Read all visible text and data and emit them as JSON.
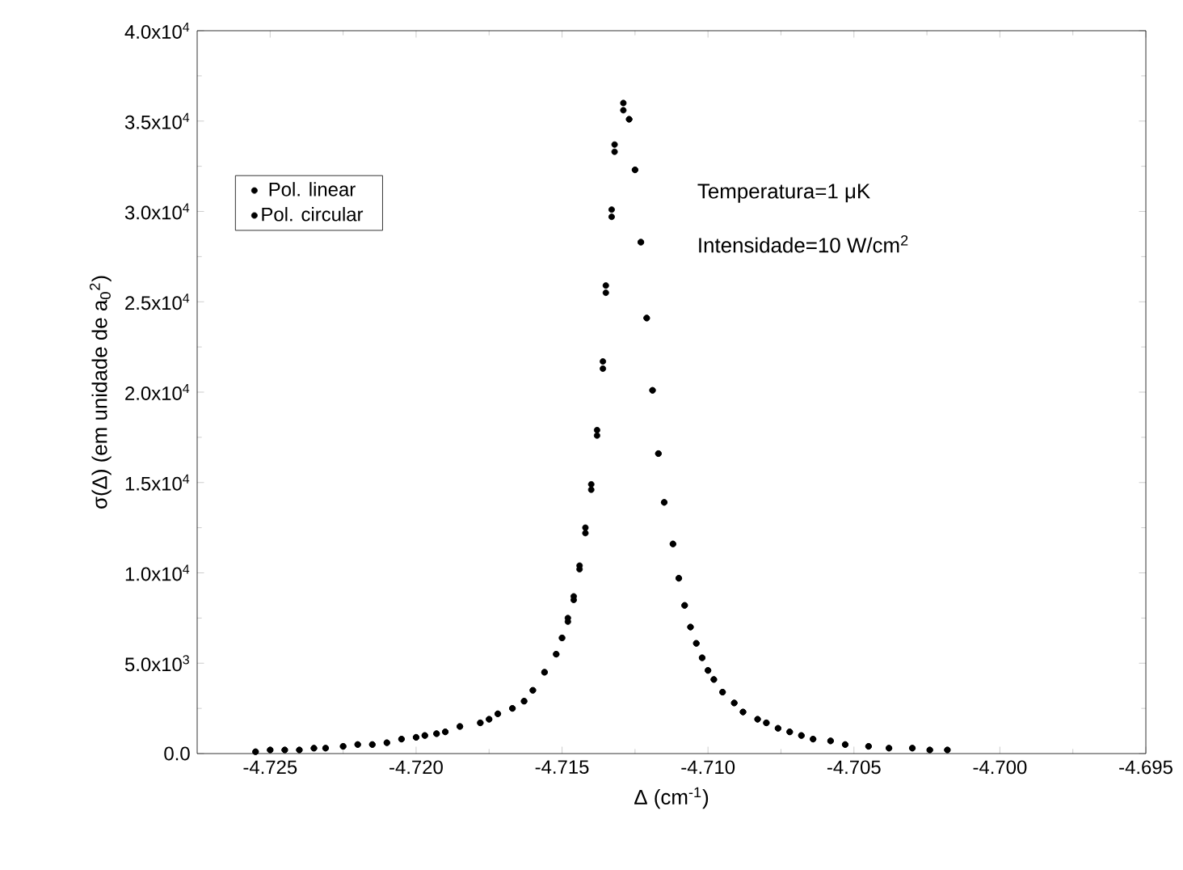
{
  "chart_data": {
    "type": "scatter",
    "xlabel": "Δ (cm$^{-1}$)",
    "ylabel": "σ(Δ) (em unidade de a$_{0}$$^{2}$)",
    "annotations": [
      "Temperatura=1 μK",
      "Intensidade=10 W/cm$^{2}$"
    ],
    "xlim": [
      -4.7275,
      -4.695
    ],
    "ylim": [
      0,
      40000
    ],
    "xticks": [
      -4.725,
      {
        "value": -4.72,
        "label": "-4.720"
      },
      -4.715,
      {
        "value": -4.71,
        "label": "-4.710"
      },
      -4.705,
      {
        "value": -4.7,
        "label": "-4.700"
      },
      -4.695
    ],
    "yticks": [
      {
        "value": 0,
        "label": "0.0"
      },
      {
        "value": 5000,
        "label": "5.0x10$^{3}$"
      },
      {
        "value": 10000,
        "label": "1.0x10$^{4}$"
      },
      {
        "value": 15000,
        "label": "1.5x10$^{4}$"
      },
      {
        "value": 20000,
        "label": "2.0x10$^{4}$"
      },
      {
        "value": 25000,
        "label": "2.5x10$^{4}$"
      },
      {
        "value": 30000,
        "label": "3.0x10$^{4}$"
      },
      {
        "value": 35000,
        "label": "3.5x10$^{4}$"
      },
      {
        "value": 40000,
        "label": "4.0x10$^{4}$"
      }
    ],
    "grid": false,
    "legend": "top left",
    "marker": "circle",
    "series": [
      {
        "name": "Pol. linear",
        "color": "#000000",
        "x": [
          -4.7255,
          -4.725,
          -4.7245,
          -4.724,
          -4.7235,
          -4.7231,
          -4.7225,
          -4.722,
          -4.7215,
          -4.721,
          -4.7205,
          -4.72,
          -4.7197,
          -4.7193,
          -4.719,
          -4.7185,
          -4.7178,
          -4.7175,
          -4.7172,
          -4.7167,
          -4.7163,
          -4.716,
          -4.7156,
          -4.7152,
          -4.715,
          -4.7148,
          -4.7146,
          -4.7144,
          -4.7142,
          -4.714,
          -4.7138,
          -4.7136,
          -4.7135,
          -4.7133,
          -4.7132,
          -4.7129,
          -4.7127,
          -4.7125,
          -4.7123,
          -4.7121,
          -4.7119,
          -4.7117,
          -4.7115,
          -4.7112,
          -4.711,
          -4.7108,
          -4.7106,
          -4.7104,
          -4.7102,
          -4.71,
          -4.7098,
          -4.7095,
          -4.7091,
          -4.7088,
          -4.7083,
          -4.708,
          -4.7076,
          -4.7072,
          -4.7068,
          -4.7064,
          -4.7058,
          -4.7053,
          -4.7045,
          -4.7038,
          -4.703,
          -4.7024,
          -4.7018
        ],
        "values": [
          100,
          200,
          200,
          200,
          300,
          300,
          400,
          500,
          500,
          600,
          800,
          900,
          1000,
          1100,
          1200,
          1500,
          1700,
          1900,
          2200,
          2500,
          2900,
          3500,
          4500,
          5500,
          6400,
          7500,
          8700,
          10400,
          12500,
          14900,
          17900,
          21700,
          25900,
          30100,
          33700,
          35600,
          35100,
          32300,
          28300,
          24100,
          20100,
          16600,
          13900,
          11600,
          9700,
          8200,
          7000,
          6100,
          5300,
          4600,
          4100,
          3400,
          2800,
          2300,
          1900,
          1700,
          1400,
          1200,
          1000,
          800,
          700,
          500,
          400,
          300,
          300,
          200,
          200
        ]
      },
      {
        "name": "Pol. circular",
        "color": "#000000",
        "x": [
          -4.7255,
          -4.725,
          -4.7245,
          -4.724,
          -4.7235,
          -4.7231,
          -4.7225,
          -4.722,
          -4.7215,
          -4.721,
          -4.7205,
          -4.72,
          -4.7197,
          -4.7193,
          -4.719,
          -4.7185,
          -4.7178,
          -4.7175,
          -4.7172,
          -4.7167,
          -4.7163,
          -4.716,
          -4.7156,
          -4.7152,
          -4.715,
          -4.7148,
          -4.7146,
          -4.7144,
          -4.7142,
          -4.714,
          -4.7138,
          -4.7136,
          -4.7135,
          -4.7133,
          -4.7132,
          -4.7129,
          -4.7127,
          -4.7125,
          -4.7123,
          -4.7121,
          -4.7119,
          -4.7117,
          -4.7115,
          -4.7112,
          -4.711,
          -4.7108,
          -4.7106,
          -4.7104,
          -4.7102,
          -4.71,
          -4.7098,
          -4.7095,
          -4.7091,
          -4.7088,
          -4.7083,
          -4.708,
          -4.7076,
          -4.7072,
          -4.7068,
          -4.7064,
          -4.7058,
          -4.7053,
          -4.7045,
          -4.7038,
          -4.703,
          -4.7024,
          -4.7018
        ],
        "values": [
          100,
          200,
          200,
          200,
          300,
          300,
          400,
          500,
          500,
          600,
          800,
          900,
          1000,
          1100,
          1200,
          1500,
          1700,
          1900,
          2200,
          2500,
          2900,
          3500,
          4500,
          5500,
          6400,
          7300,
          8500,
          10200,
          12200,
          14600,
          17600,
          21300,
          25500,
          29700,
          33300,
          36000,
          35100,
          32300,
          28300,
          24100,
          20100,
          16600,
          13900,
          11600,
          9700,
          8200,
          7000,
          6100,
          5300,
          4600,
          4100,
          3400,
          2800,
          2300,
          1900,
          1700,
          1400,
          1200,
          1000,
          800,
          700,
          500,
          400,
          300,
          300,
          200,
          200
        ]
      }
    ]
  }
}
